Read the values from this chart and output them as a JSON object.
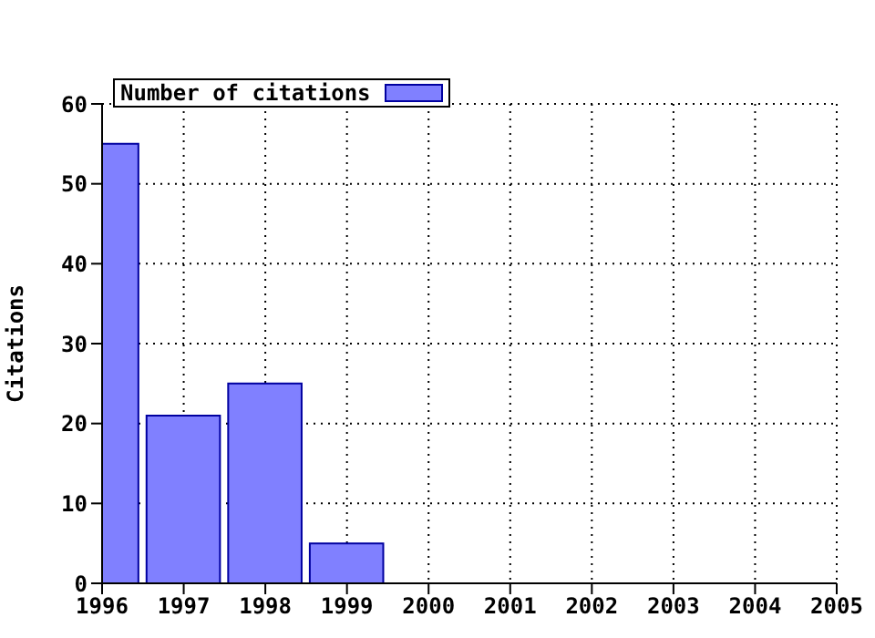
{
  "chart_data": {
    "type": "bar",
    "x": [
      1996,
      1997,
      1998,
      1999
    ],
    "series": [
      {
        "name": "Number of citations",
        "color": "#8080ff",
        "values": [
          55,
          21,
          25,
          5
        ]
      }
    ],
    "ylabel": "Citations",
    "xlim": [
      1996,
      2005
    ],
    "xticks": [
      1996,
      1997,
      1998,
      1999,
      2000,
      2001,
      2002,
      2003,
      2004,
      2005
    ],
    "ylim": [
      0,
      60
    ],
    "yticks": [
      0,
      10,
      20,
      30,
      40,
      50,
      60
    ],
    "grid": true,
    "legend": "top left"
  }
}
